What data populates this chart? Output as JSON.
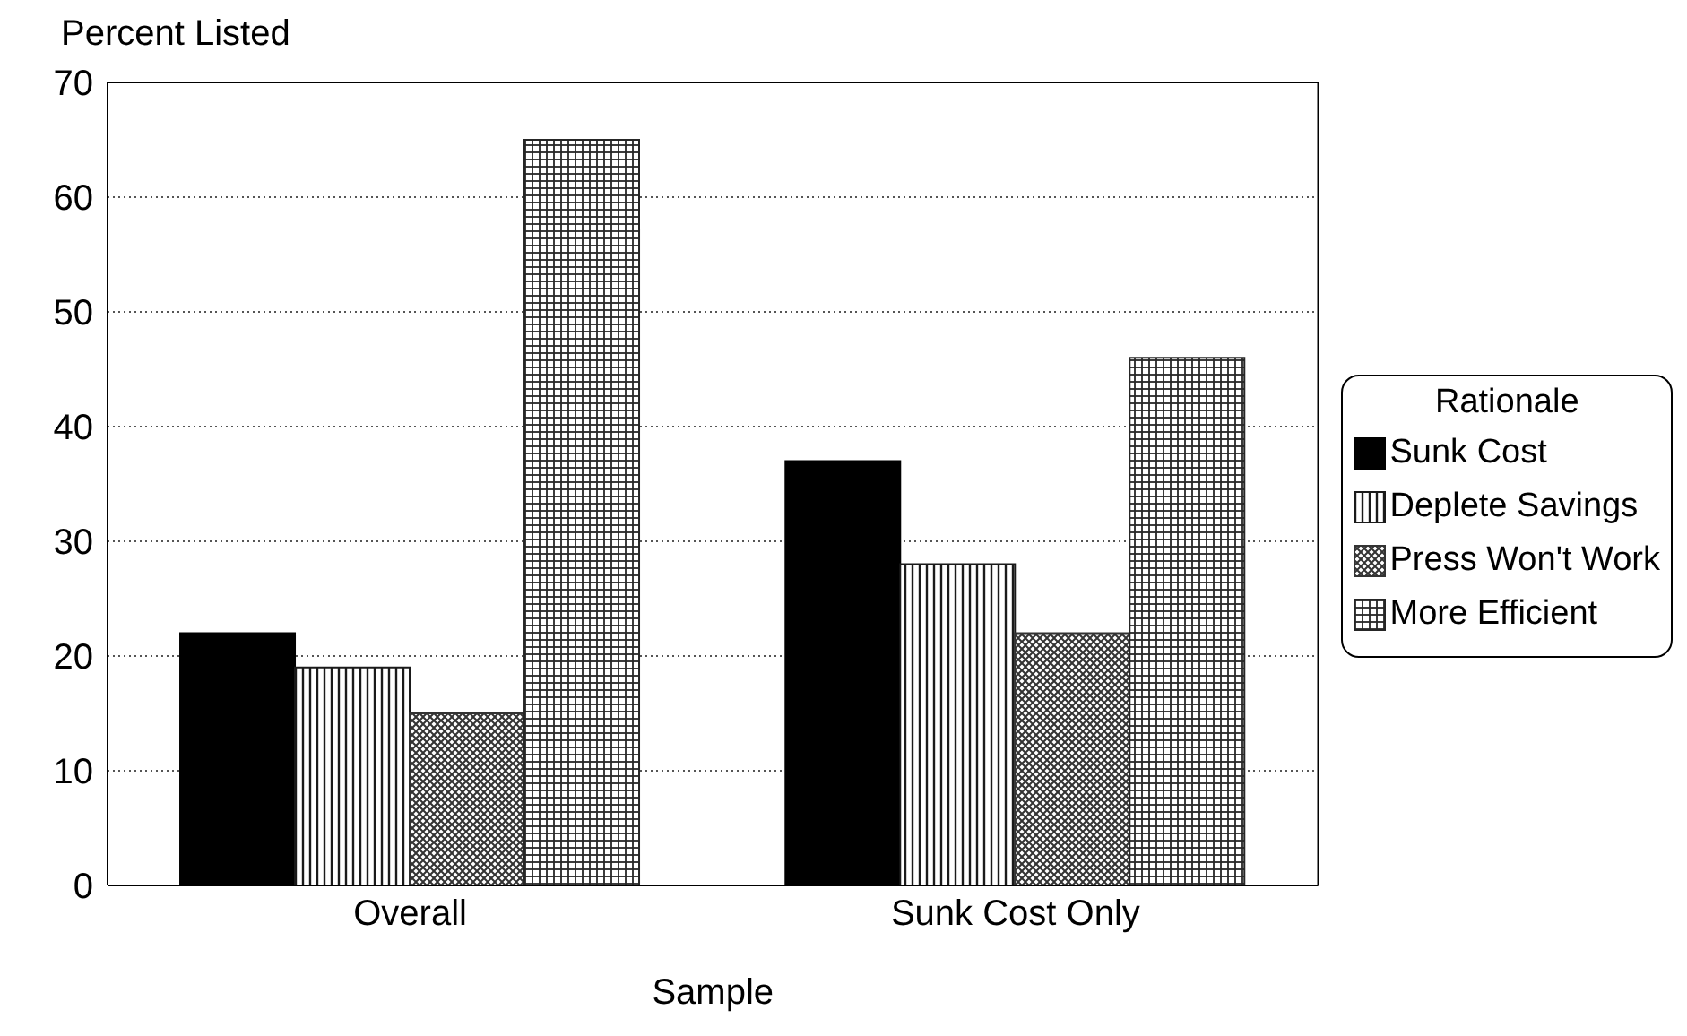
{
  "chart_data": {
    "type": "bar",
    "xlabel": "Sample",
    "ylabel": "Percent Listed",
    "legend_title": "Rationale",
    "categories": [
      "Overall",
      "Sunk Cost Only"
    ],
    "series": [
      {
        "name": "Sunk Cost",
        "color": "#000000",
        "values": [
          22,
          37
        ]
      },
      {
        "name": "Deplete Savings",
        "color": "#1a1a1a",
        "values": [
          19,
          28
        ]
      },
      {
        "name": "Press Won't Work",
        "color": "#333333",
        "values": [
          15,
          22
        ]
      },
      {
        "name": "More Efficient",
        "color": "#262626",
        "values": [
          65,
          46
        ]
      }
    ],
    "ylim": [
      0,
      70
    ],
    "yticks": [
      0,
      10,
      20,
      30,
      40,
      50,
      60,
      70
    ],
    "grid": "y",
    "legend": "right"
  }
}
